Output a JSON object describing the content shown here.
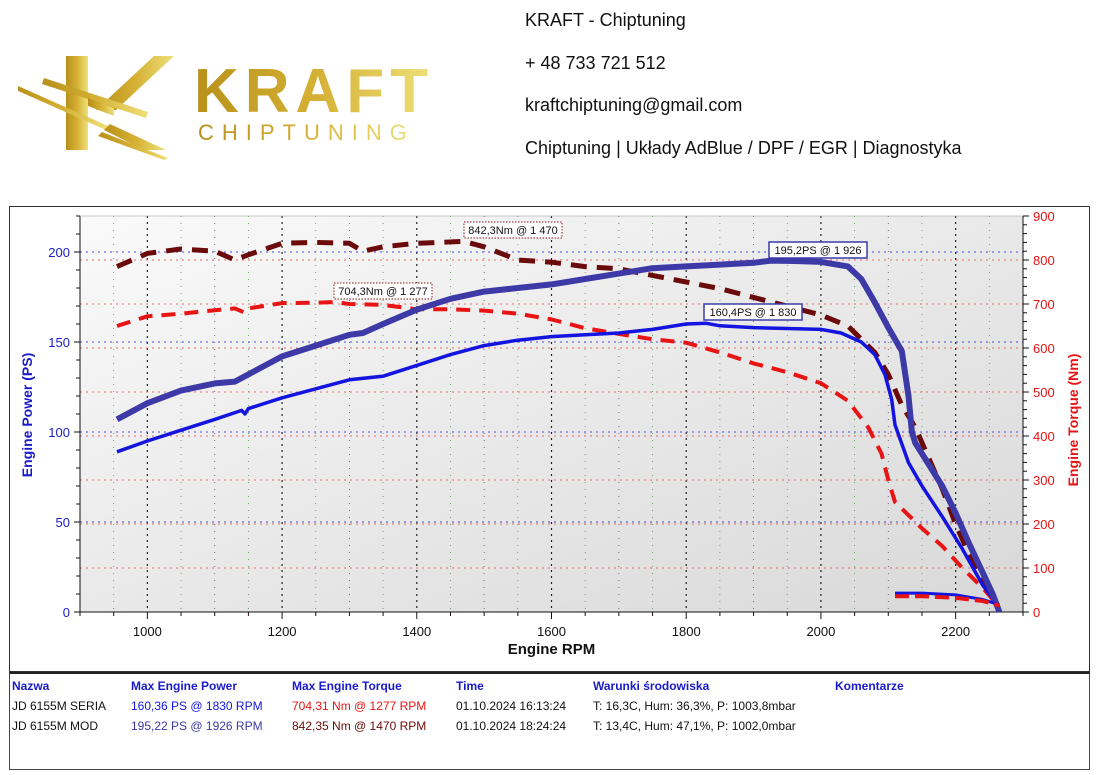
{
  "header": {
    "logo_text": "KRAFT",
    "logo_subtext": "CHIPTUNING",
    "contact_lines": [
      "KRAFT - Chiptuning",
      "+ 48 733 721 512",
      "kraftchiptuning@gmail.com",
      "Chiptuning | Układy AdBlue / DPF / EGR | Diagnostyka"
    ],
    "colors": {
      "gold_dark": "#b8901a",
      "gold_light": "#efe07a"
    }
  },
  "chart_data": {
    "type": "line",
    "title": "",
    "xlabel": "Engine RPM",
    "ylabel_left": "Engine Power (PS)",
    "ylabel_right": "Engine Torque (Nm)",
    "xlim": [
      900,
      2300
    ],
    "ylim_left": [
      0,
      220
    ],
    "ylim_right": [
      0,
      900
    ],
    "x_ticks": [
      1000,
      1200,
      1400,
      1600,
      1800,
      2000,
      2200
    ],
    "y_ticks_left": [
      0,
      50,
      100,
      150,
      200
    ],
    "y_ticks_right": [
      0,
      100,
      200,
      300,
      400,
      500,
      600,
      700,
      800,
      900
    ],
    "grid": true,
    "series": [
      {
        "name": "JD 6155M MOD - Power",
        "axis": "left",
        "style": "solid-thick",
        "color": "#3d3aa8",
        "x": [
          955,
          1000,
          1050,
          1100,
          1130,
          1150,
          1200,
          1250,
          1300,
          1320,
          1350,
          1400,
          1450,
          1500,
          1550,
          1600,
          1650,
          1700,
          1750,
          1800,
          1850,
          1900,
          1926,
          1960,
          2000,
          2040,
          2060,
          2080,
          2100,
          2120,
          2130,
          2135,
          2140,
          2160,
          2180,
          2200,
          2220,
          2240,
          2255,
          2265
        ],
        "y": [
          107,
          116,
          123,
          127,
          128,
          132,
          142,
          148,
          154,
          155,
          160,
          168,
          174,
          178,
          180,
          182,
          185,
          188,
          191,
          192,
          193,
          194,
          195.2,
          195,
          194.5,
          192,
          185,
          172,
          158,
          145,
          120,
          100,
          94,
          82,
          70,
          55,
          38,
          22,
          10,
          0
        ]
      },
      {
        "name": "JD 6155M SERIA - Power",
        "axis": "left",
        "style": "solid",
        "color": "#1414e0",
        "x": [
          955,
          1000,
          1050,
          1100,
          1140,
          1145,
          1150,
          1200,
          1250,
          1300,
          1350,
          1400,
          1450,
          1500,
          1550,
          1600,
          1650,
          1700,
          1750,
          1800,
          1830,
          1850,
          1900,
          1950,
          2000,
          2030,
          2060,
          2080,
          2095,
          2105,
          2110,
          2130,
          2150,
          2180,
          2210,
          2240,
          2260
        ],
        "y": [
          89,
          95,
          101,
          107,
          112,
          110,
          113,
          119,
          124,
          129,
          131,
          137,
          143,
          148,
          151,
          153,
          154,
          155,
          157,
          160,
          160.4,
          159,
          158,
          157.5,
          157,
          155,
          150,
          143,
          132,
          118,
          104,
          83,
          70,
          53,
          35,
          15,
          5
        ]
      },
      {
        "name": "JD 6155M MOD - Torque",
        "axis": "right",
        "style": "dashed-thick",
        "color": "#6b0a0a",
        "x": [
          955,
          1000,
          1050,
          1100,
          1130,
          1150,
          1200,
          1250,
          1300,
          1320,
          1350,
          1400,
          1470,
          1500,
          1550,
          1600,
          1650,
          1700,
          1750,
          1800,
          1850,
          1900,
          1950,
          2000,
          2040,
          2060,
          2080,
          2100,
          2120,
          2140,
          2160,
          2180,
          2200,
          2220,
          2240,
          2260
        ],
        "y": [
          785,
          815,
          825,
          820,
          800,
          812,
          838,
          840,
          838,
          820,
          830,
          838,
          842.3,
          830,
          800,
          795,
          785,
          780,
          765,
          750,
          735,
          715,
          695,
          675,
          650,
          620,
          590,
          540,
          470,
          420,
          350,
          280,
          200,
          130,
          70,
          20
        ]
      },
      {
        "name": "JD 6155M SERIA - Torque",
        "axis": "right",
        "style": "dashed",
        "color": "#e81414",
        "x": [
          955,
          1000,
          1050,
          1100,
          1130,
          1145,
          1150,
          1200,
          1250,
          1277,
          1300,
          1350,
          1400,
          1450,
          1500,
          1550,
          1600,
          1650,
          1700,
          1750,
          1800,
          1850,
          1900,
          1950,
          2000,
          2040,
          2070,
          2090,
          2100,
          2110,
          2130,
          2150,
          2180,
          2210,
          2240,
          2260
        ],
        "y": [
          650,
          672,
          678,
          686,
          690,
          680,
          690,
          702,
          703,
          704.3,
          700,
          698,
          688,
          688,
          685,
          678,
          665,
          645,
          632,
          620,
          612,
          590,
          565,
          545,
          520,
          480,
          420,
          360,
          300,
          250,
          220,
          190,
          150,
          100,
          55,
          20
        ]
      }
    ],
    "annotations": [
      {
        "text": "842,3Nm @ 1 470",
        "x": 1470,
        "y": 842.3,
        "axis": "right",
        "box": "dotted-red"
      },
      {
        "text": "704,3Nm @ 1 277",
        "x": 1277,
        "y": 704.3,
        "axis": "right",
        "box": "dotted-red"
      },
      {
        "text": "195,2PS @ 1 926",
        "x": 1926,
        "y": 195.2,
        "axis": "left",
        "box": "solid-blue"
      },
      {
        "text": "160,4PS @ 1 830",
        "x": 1830,
        "y": 160.4,
        "axis": "left",
        "box": "solid-blue"
      }
    ],
    "tail_segments": [
      {
        "name": "rundown-power",
        "color": "#1414e0",
        "x": [
          2110,
          2150,
          2200,
          2240,
          2265
        ],
        "y": [
          10.5,
          10.5,
          9.5,
          7,
          4
        ]
      },
      {
        "name": "rundown-torque",
        "color": "#e81414",
        "x": [
          2110,
          2150,
          2200,
          2240,
          2265
        ],
        "y": [
          36,
          36,
          32,
          25,
          15
        ]
      }
    ],
    "colors": {
      "left_axis": "#1a1acc",
      "right_axis": "#e81414",
      "grid_blue": "#4a4ae0",
      "grid_red": "#e86a6a",
      "grid_black": "#222222",
      "grid_green": "#4a9a4a"
    }
  },
  "results_table": {
    "headers": [
      "Nazwa",
      "Max Engine Power",
      "Max Engine Torque",
      "Time",
      "Warunki środowiska",
      "Komentarze"
    ],
    "rows": [
      {
        "name": "JD 6155M SERIA",
        "max_power": "160,36 PS @ 1830 RPM",
        "max_torque": "704,31 Nm @ 1277 RPM",
        "time": "01.10.2024 16:13:24",
        "conditions": "T: 16,3C, Hum: 36,3%, P: 1003,8mbar",
        "comments": "",
        "power_color": "#1414e0",
        "torque_color": "#e81414"
      },
      {
        "name": "JD 6155M MOD",
        "max_power": "195,22 PS @ 1926 RPM",
        "max_torque": "842,35 Nm @ 1470 RPM",
        "time": "01.10.2024 18:24:24",
        "conditions": "T: 13,4C, Hum: 47,1%, P: 1002,0mbar",
        "comments": "",
        "power_color": "#3d3aa8",
        "torque_color": "#6b0a0a"
      }
    ]
  }
}
